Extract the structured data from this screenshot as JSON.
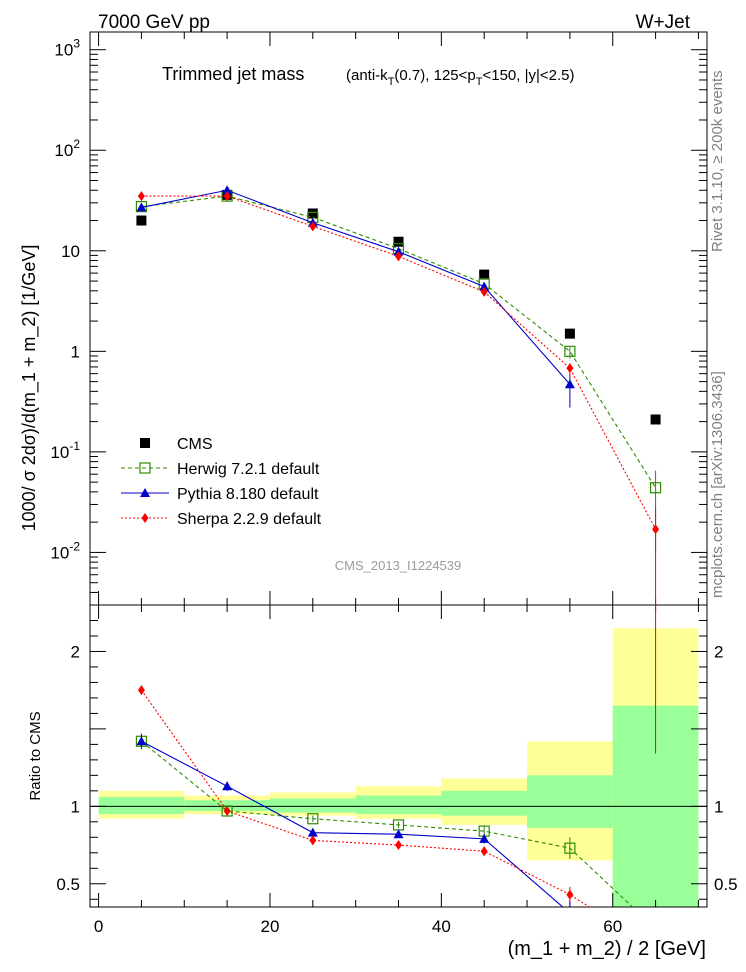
{
  "header": {
    "left": "7000 GeV pp",
    "right": "W+Jet"
  },
  "title": {
    "main": "Trimmed jet mass",
    "sub_prefix": "(anti-k",
    "sub_t1": "T",
    "sub_mid": "(0.7), 125<p",
    "sub_t2": "T",
    "sub_suffix": "<150, |y|<2.5)"
  },
  "side_labels": {
    "rivet": "Rivet 3.1.10, ≥ 200k events",
    "mcplots": "mcplots.cern.ch [arXiv:1306.3436]"
  },
  "watermark": "CMS_2013_I1224539",
  "colors": {
    "data": "#000000",
    "herwig": "#2e8b00",
    "pythia": "#0000cc",
    "sherpa": "#ff0000",
    "band_inner": "#99ff99",
    "band_outer": "#ffff99"
  },
  "chart_data": {
    "type": "line",
    "xlabel": "(m_1 + m_2) / 2 [GeV]",
    "ylabel": "1000/ σ 2dσ)/d(m_1 + m_2) [1/GeV]",
    "ratio_ylabel": "Ratio to CMS",
    "xlim": [
      -1,
      71
    ],
    "ylim": [
      0.003,
      1500
    ],
    "yscale": "log",
    "ratio_ylim": [
      0.35,
      2.3
    ],
    "x_ticks": [
      0,
      20,
      40,
      60
    ],
    "y_ticks": [
      "10^-2",
      "10^-1",
      "1",
      "10",
      "10^2",
      "10^3"
    ],
    "ratio_ticks": [
      "0.5",
      "1",
      "2"
    ],
    "legend_position": "lower-left",
    "bins": [
      [
        0,
        10
      ],
      [
        10,
        20
      ],
      [
        20,
        30
      ],
      [
        30,
        40
      ],
      [
        40,
        50
      ],
      [
        50,
        60
      ],
      [
        60,
        70
      ]
    ],
    "x": [
      5,
      15,
      25,
      35,
      45,
      55,
      65
    ],
    "series": [
      {
        "name": "CMS",
        "key": "data",
        "values": [
          20,
          36,
          23.5,
          12.3,
          5.8,
          1.5,
          0.21
        ],
        "band_inner": [
          [
            0.95,
            1.06
          ],
          [
            0.97,
            1.04
          ],
          [
            0.96,
            1.05
          ],
          [
            0.95,
            1.07
          ],
          [
            0.94,
            1.1
          ],
          [
            0.86,
            1.2
          ],
          [
            0.35,
            1.65
          ]
        ],
        "band_outer": [
          [
            0.92,
            1.1
          ],
          [
            0.95,
            1.07
          ],
          [
            0.94,
            1.09
          ],
          [
            0.92,
            1.13
          ],
          [
            0.88,
            1.18
          ],
          [
            0.65,
            1.42
          ],
          [
            0.35,
            2.15
          ]
        ]
      },
      {
        "name": "Herwig 7.2.1 default",
        "key": "herwig",
        "values": [
          27.5,
          35,
          21.5,
          10.5,
          4.7,
          1.0,
          0.044
        ],
        "ratio": [
          1.42,
          0.97,
          0.92,
          0.88,
          0.84,
          0.73,
          0.21
        ],
        "ratio_err": [
          0.04,
          0.02,
          0.02,
          0.02,
          0.03,
          0.07,
          0.1
        ]
      },
      {
        "name": "Pythia 8.180 default",
        "key": "pythia",
        "values": [
          27,
          40,
          19,
          9.8,
          4.4,
          0.47,
          null
        ],
        "ratio": [
          1.42,
          1.13,
          0.83,
          0.82,
          0.79,
          0.31,
          null
        ],
        "ratio_err": [
          0.05,
          0.03,
          0.02,
          0.02,
          0.03,
          0.08,
          null
        ]
      },
      {
        "name": "Sherpa 2.2.9 default",
        "key": "sherpa",
        "values": [
          35,
          35,
          17.5,
          8.8,
          3.9,
          0.68,
          0.017
        ],
        "ratio": [
          1.75,
          0.97,
          0.78,
          0.75,
          0.71,
          0.43,
          0.08
        ],
        "ratio_err": [
          0.03,
          0.02,
          0.02,
          0.02,
          0.03,
          0.05,
          0.05
        ]
      }
    ]
  }
}
